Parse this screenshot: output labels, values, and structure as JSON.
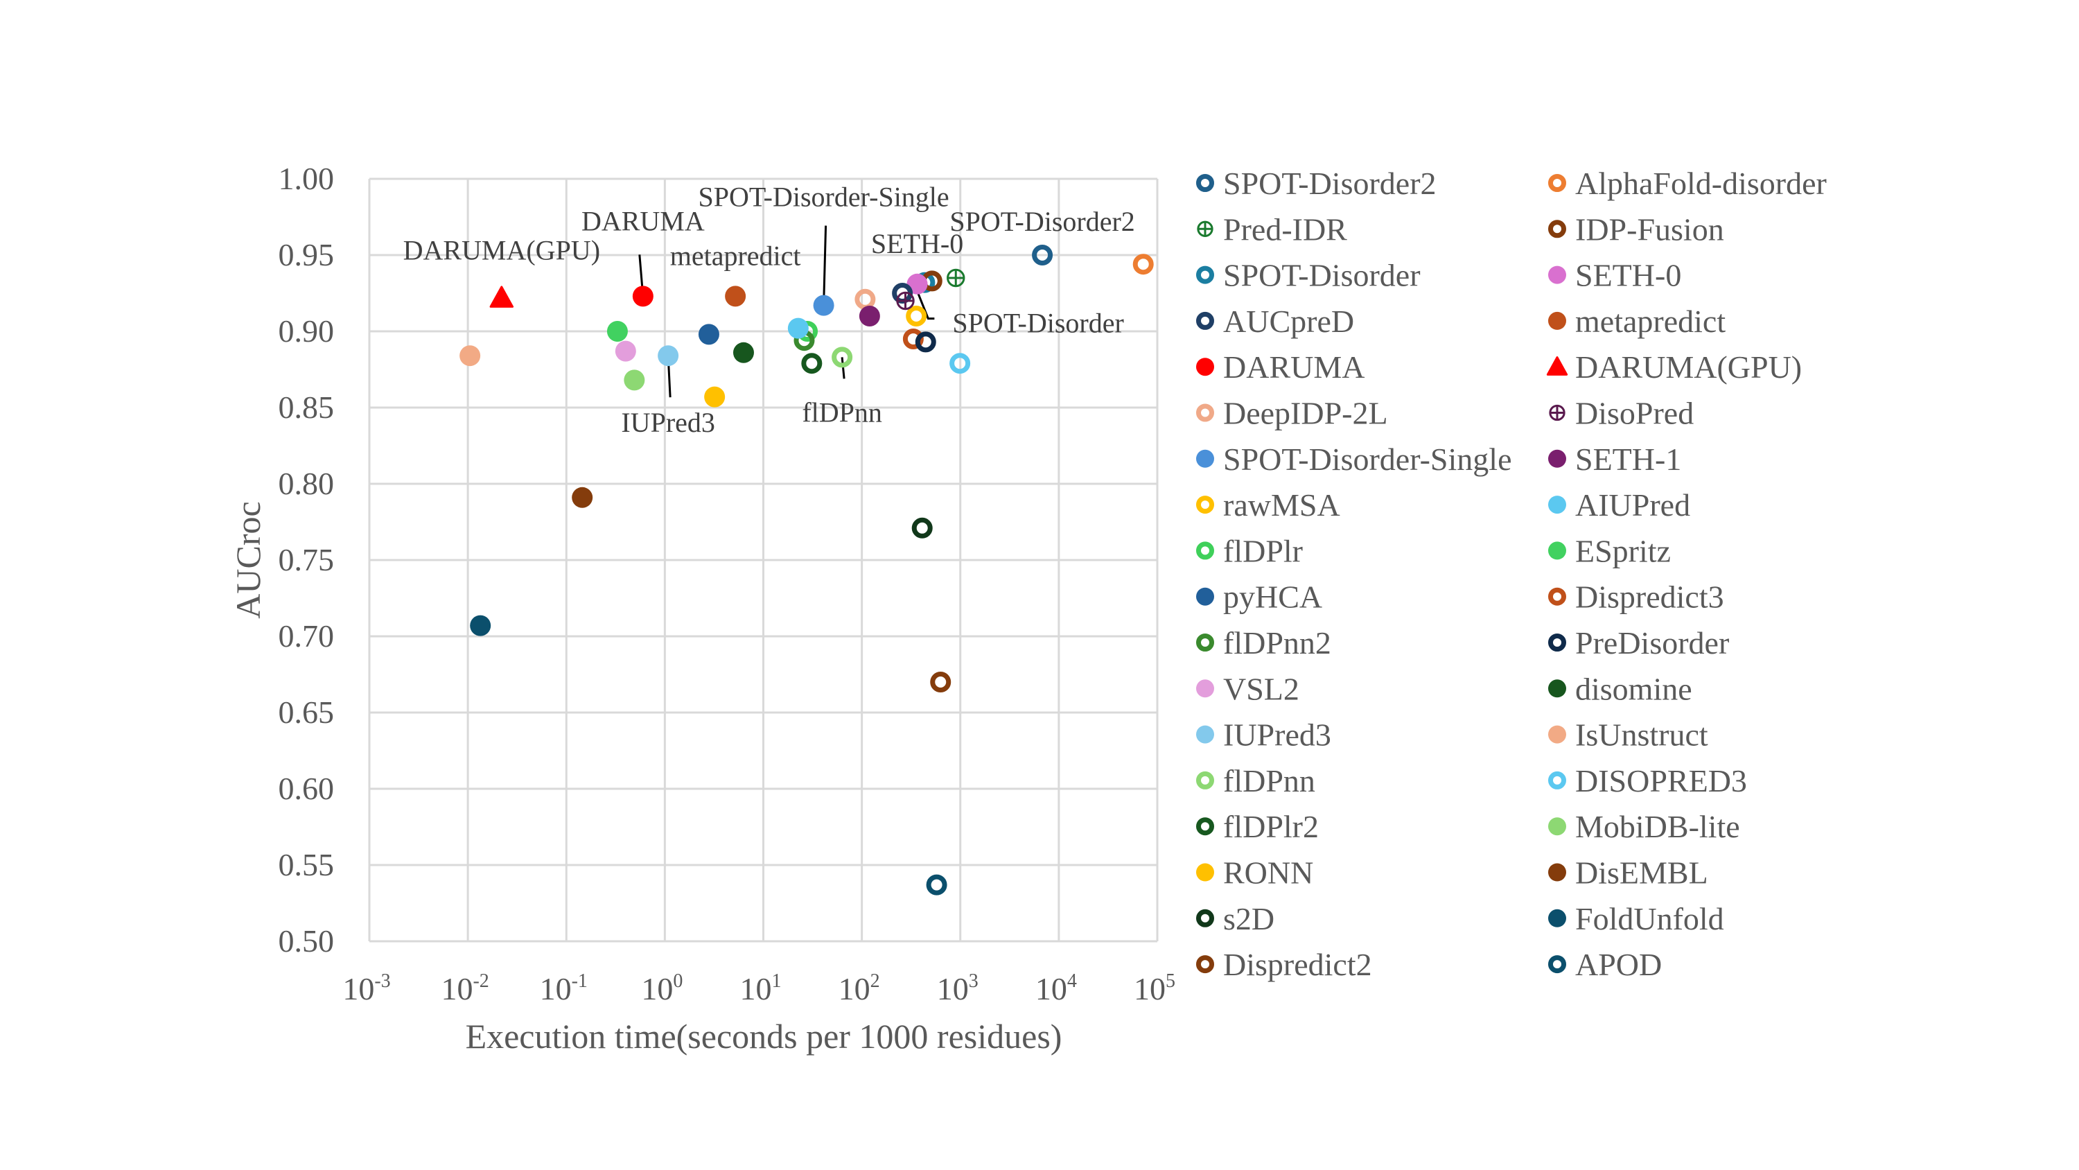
{
  "chart_data": {
    "type": "scatter",
    "title": "",
    "xlabel": "Execution time(seconds per 1000 residues)",
    "ylabel": "AUCroc",
    "xscale": "log10",
    "xlim": [
      0.001,
      100000
    ],
    "ylim": [
      0.5,
      1.0
    ],
    "grid": true,
    "legend_position": "right",
    "x_ticks": [
      {
        "base": "10",
        "exp": "-3"
      },
      {
        "base": "10",
        "exp": "-2"
      },
      {
        "base": "10",
        "exp": "-1"
      },
      {
        "base": "10",
        "exp": "0"
      },
      {
        "base": "10",
        "exp": "1"
      },
      {
        "base": "10",
        "exp": "2"
      },
      {
        "base": "10",
        "exp": "3"
      },
      {
        "base": "10",
        "exp": "4"
      },
      {
        "base": "10",
        "exp": "5"
      }
    ],
    "y_ticks": [
      "0.50",
      "0.55",
      "0.60",
      "0.65",
      "0.70",
      "0.75",
      "0.80",
      "0.85",
      "0.90",
      "0.95",
      "1.00"
    ],
    "series": [
      {
        "name": "SPOT-Disorder2",
        "marker": "open-circle",
        "color": "#1f5f8b",
        "x": 6800,
        "y": 0.95
      },
      {
        "name": "Pred-IDR",
        "marker": "crossed-circle",
        "color": "#1a7a2e",
        "x": 900,
        "y": 0.935
      },
      {
        "name": "SPOT-Disorder",
        "marker": "open-circle",
        "color": "#1b7ea1",
        "x": 435,
        "y": 0.932
      },
      {
        "name": "AUCpreD",
        "marker": "open-circle",
        "color": "#1f3f66",
        "x": 258,
        "y": 0.925
      },
      {
        "name": "DARUMA",
        "marker": "filled-circle",
        "color": "#ff0000",
        "x": 0.6,
        "y": 0.923
      },
      {
        "name": "DeepIDP-2L",
        "marker": "open-circle",
        "color": "#f0a988",
        "x": 108,
        "y": 0.921
      },
      {
        "name": "SPOT-Disorder-Single",
        "marker": "filled-circle",
        "color": "#4a90d9",
        "x": 41,
        "y": 0.917
      },
      {
        "name": "rawMSA",
        "marker": "open-circle",
        "color": "#ffc000",
        "x": 357,
        "y": 0.91
      },
      {
        "name": "flDPlr",
        "marker": "open-circle",
        "color": "#3fd05a",
        "x": 28,
        "y": 0.9
      },
      {
        "name": "pyHCA",
        "marker": "filled-circle",
        "color": "#215f9a",
        "x": 2.8,
        "y": 0.898
      },
      {
        "name": "flDPnn2",
        "marker": "open-circle",
        "color": "#3a8a2e",
        "x": 26,
        "y": 0.894
      },
      {
        "name": "VSL2",
        "marker": "filled-circle",
        "color": "#e39edc",
        "x": 0.4,
        "y": 0.887
      },
      {
        "name": "IUPred3",
        "marker": "filled-circle",
        "color": "#83c9ec",
        "x": 1.08,
        "y": 0.884
      },
      {
        "name": "flDPnn",
        "marker": "open-circle",
        "color": "#8dd873",
        "x": 63,
        "y": 0.883
      },
      {
        "name": "flDPlr2",
        "marker": "open-circle",
        "color": "#17581f",
        "x": 31,
        "y": 0.879
      },
      {
        "name": "RONN",
        "marker": "filled-circle",
        "color": "#ffc000",
        "x": 3.2,
        "y": 0.857
      },
      {
        "name": "s2D",
        "marker": "open-circle",
        "color": "#11381a",
        "x": 410,
        "y": 0.771
      },
      {
        "name": "Dispredict2",
        "marker": "open-circle",
        "color": "#843c0c",
        "x": 630,
        "y": 0.67
      },
      {
        "name": "AlphaFold-disorder",
        "marker": "open-circle",
        "color": "#ed7d31",
        "x": 72000,
        "y": 0.944
      },
      {
        "name": "IDP-Fusion",
        "marker": "open-circle",
        "color": "#843c0c",
        "x": 515,
        "y": 0.933
      },
      {
        "name": "SETH-0",
        "marker": "filled-circle",
        "color": "#d970cf",
        "x": 365,
        "y": 0.931
      },
      {
        "name": "metapredict",
        "marker": "filled-circle",
        "color": "#c0501a",
        "x": 5.2,
        "y": 0.923
      },
      {
        "name": "DARUMA(GPU)",
        "marker": "filled-triangle",
        "color": "#ff0000",
        "x": 0.022,
        "y": 0.922
      },
      {
        "name": "DisoPred",
        "marker": "crossed-circle",
        "color": "#5a1a4e",
        "x": 277,
        "y": 0.92
      },
      {
        "name": "SETH-1",
        "marker": "filled-circle",
        "color": "#7a1f6e",
        "x": 120,
        "y": 0.91
      },
      {
        "name": "AIUPred",
        "marker": "filled-circle",
        "color": "#5bc8f0",
        "x": 22.6,
        "y": 0.902
      },
      {
        "name": "ESpritz",
        "marker": "filled-circle",
        "color": "#41d160",
        "x": 0.33,
        "y": 0.9
      },
      {
        "name": "Dispredict3",
        "marker": "open-circle",
        "color": "#c0501a",
        "x": 333,
        "y": 0.895
      },
      {
        "name": "PreDisorder",
        "marker": "open-circle",
        "color": "#0f2a4a",
        "x": 445,
        "y": 0.893
      },
      {
        "name": "disomine",
        "marker": "filled-circle",
        "color": "#17561e",
        "x": 6.3,
        "y": 0.886
      },
      {
        "name": "IsUnstruct",
        "marker": "filled-circle",
        "color": "#f2aa85",
        "x": 0.0105,
        "y": 0.884
      },
      {
        "name": "DISOPRED3",
        "marker": "open-circle",
        "color": "#5bc8f0",
        "x": 990,
        "y": 0.879
      },
      {
        "name": "MobiDB-lite",
        "marker": "filled-circle",
        "color": "#8dd873",
        "x": 0.49,
        "y": 0.868
      },
      {
        "name": "DisEMBL",
        "marker": "filled-circle",
        "color": "#843c0c",
        "x": 0.145,
        "y": 0.791
      },
      {
        "name": "FoldUnfold",
        "marker": "filled-circle",
        "color": "#0b4f6c",
        "x": 0.0134,
        "y": 0.707
      },
      {
        "name": "APOD",
        "marker": "open-circle",
        "color": "#0b4f6c",
        "x": 575,
        "y": 0.537
      }
    ],
    "legend_columns": [
      [
        "SPOT-Disorder2",
        "Pred-IDR",
        "SPOT-Disorder",
        "AUCpreD",
        "DARUMA",
        "DeepIDP-2L",
        "SPOT-Disorder-Single",
        "rawMSA",
        "flDPlr",
        "pyHCA",
        "flDPnn2",
        "VSL2",
        "IUPred3",
        "flDPnn",
        "flDPlr2",
        "RONN",
        "s2D",
        "Dispredict2"
      ],
      [
        "AlphaFold-disorder",
        "IDP-Fusion",
        "SETH-0",
        "metapredict",
        "DARUMA(GPU)",
        "DisoPred",
        "SETH-1",
        "AIUPred",
        "ESpritz",
        "Dispredict3",
        "PreDisorder",
        "disomine",
        "IsUnstruct",
        "DISOPRED3",
        "MobiDB-lite",
        "DisEMBL",
        "FoldUnfold",
        "APOD"
      ]
    ],
    "annotations": [
      {
        "text": "DARUMA(GPU)",
        "target": "DARUMA(GPU)"
      },
      {
        "text": "DARUMA",
        "target": "DARUMA"
      },
      {
        "text": "metapredict",
        "target": "metapredict"
      },
      {
        "text": "SPOT-Disorder-Single",
        "target": "SPOT-Disorder-Single"
      },
      {
        "text": "SETH-0",
        "target": "SETH-0"
      },
      {
        "text": "SPOT-Disorder2",
        "target": "SPOT-Disorder2"
      },
      {
        "text": "SPOT-Disorder",
        "target": "SPOT-Disorder"
      },
      {
        "text": "IUPred3",
        "target": "IUPred3"
      },
      {
        "text": "flDPnn",
        "target": "flDPnn"
      }
    ]
  }
}
